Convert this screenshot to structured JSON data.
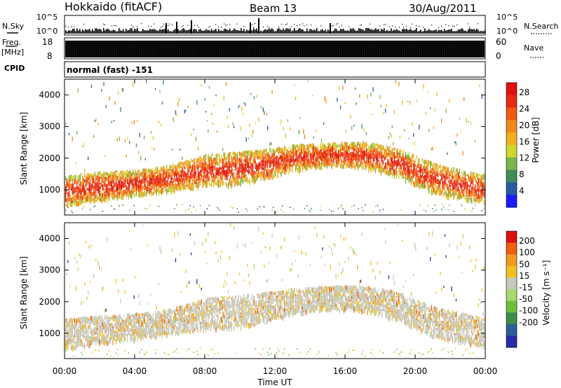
{
  "header": {
    "station": "Hokkaido (fitACF)",
    "beam": "Beam 13",
    "date": "30/Aug/2011"
  },
  "noise_panel": {
    "left_label": "N.Sky",
    "right_label": "N.Search",
    "ticks": [
      "10^5",
      "10^0"
    ]
  },
  "freq_panel": {
    "label_line1": "Freq.",
    "label_line2": "[MHz]",
    "left_ticks": [
      "18",
      "8"
    ],
    "right_ticks": [
      "60",
      "0"
    ],
    "right_label": "Nave"
  },
  "cpid": {
    "label": "CPID",
    "text": "normal (fast) -151"
  },
  "chart_data": [
    {
      "type": "heatmap",
      "title": "",
      "quantity": "Power",
      "ylabel": "Slant Range [km]",
      "ylim": [
        200,
        4500
      ],
      "yticks": [
        "1000",
        "2000",
        "3000",
        "4000"
      ],
      "colorbar_label": "Power [dB]",
      "colorbar_ticks": [
        "4",
        "8",
        "12",
        "16",
        "20",
        "24",
        "28"
      ],
      "colorbar_colors": [
        "#1a1aff",
        "#2a5aa0",
        "#3e8c55",
        "#7ab64a",
        "#cfd62f",
        "#f0b020",
        "#f08a1a",
        "#ee5a14",
        "#e82a12",
        "#e01010"
      ],
      "scatter_echo_center_km": [
        {
          "time": "00:00",
          "center": 1000,
          "width": 600
        },
        {
          "time": "02:00",
          "center": 1150,
          "width": 550
        },
        {
          "time": "04:00",
          "center": 1250,
          "width": 500
        },
        {
          "time": "06:00",
          "center": 1400,
          "width": 500
        },
        {
          "time": "08:00",
          "center": 1650,
          "width": 600
        },
        {
          "time": "09:30",
          "center": 1700,
          "width": 650
        },
        {
          "time": "11:00",
          "center": 1800,
          "width": 600
        },
        {
          "time": "13:00",
          "center": 2050,
          "width": 500
        },
        {
          "time": "15:00",
          "center": 2150,
          "width": 450
        },
        {
          "time": "17:00",
          "center": 2150,
          "width": 500
        },
        {
          "time": "19:00",
          "center": 1900,
          "width": 550
        },
        {
          "time": "21:00",
          "center": 1400,
          "width": 600
        },
        {
          "time": "24:00",
          "center": 1050,
          "width": 550
        }
      ]
    },
    {
      "type": "heatmap",
      "title": "",
      "quantity": "Velocity",
      "ylabel": "Slant Range [km]",
      "ylim": [
        200,
        4500
      ],
      "yticks": [
        "1000",
        "2000",
        "3000",
        "4000"
      ],
      "colorbar_label": "Velocity [m s⁻¹]",
      "colorbar_ticks": [
        "200",
        "100",
        "50",
        "15",
        "-15",
        "-50",
        "-100",
        "-200"
      ],
      "colorbar_colors": [
        "#2a2aaa",
        "#2e5e9a",
        "#3e8c4a",
        "#6dbf3a",
        "#a8d870",
        "#c8c8c0",
        "#f0c020",
        "#f09a20",
        "#ee6010",
        "#e01010"
      ]
    }
  ],
  "x_axis": {
    "label": "Time UT",
    "ticks": [
      "00:00",
      "04:00",
      "08:00",
      "12:00",
      "16:00",
      "20:00",
      "00:00"
    ]
  }
}
